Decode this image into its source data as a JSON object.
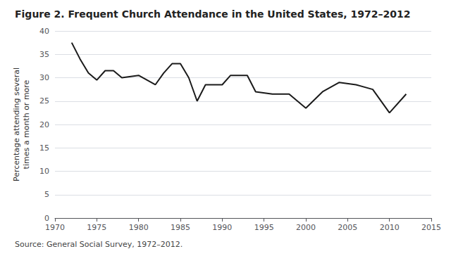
{
  "chart_data": {
    "type": "line",
    "title": "Figure 2. Frequent Church Attendance in the United States, 1972–2012",
    "ylabel": "Percentage attending several\ntimes a month or more",
    "annotations": [
      "Source: General Social Survey, 1972–2012."
    ],
    "x": [
      1972,
      1973,
      1974,
      1975,
      1976,
      1977,
      1978,
      1980,
      1982,
      1983,
      1984,
      1985,
      1986,
      1987,
      1988,
      1989,
      1990,
      1991,
      1993,
      1994,
      1996,
      1998,
      2000,
      2002,
      2004,
      2006,
      2008,
      2010,
      2012
    ],
    "values": [
      37.5,
      34.0,
      31.0,
      29.5,
      31.5,
      31.5,
      30.0,
      30.5,
      28.5,
      31.0,
      33.0,
      33.0,
      30.0,
      25.0,
      28.5,
      28.5,
      28.5,
      30.5,
      30.5,
      27.0,
      26.5,
      26.5,
      23.5,
      27.0,
      29.0,
      28.5,
      27.5,
      22.5,
      26.5
    ],
    "color": "#1a1a1a",
    "xlim": [
      1970,
      2015
    ],
    "ylim": [
      0,
      40
    ],
    "xticks": [
      1970,
      1975,
      1980,
      1985,
      1990,
      1995,
      2000,
      2005,
      2010,
      2015
    ],
    "yticks": [
      0,
      5,
      10,
      15,
      20,
      25,
      30,
      35,
      40
    ],
    "grid": true
  }
}
